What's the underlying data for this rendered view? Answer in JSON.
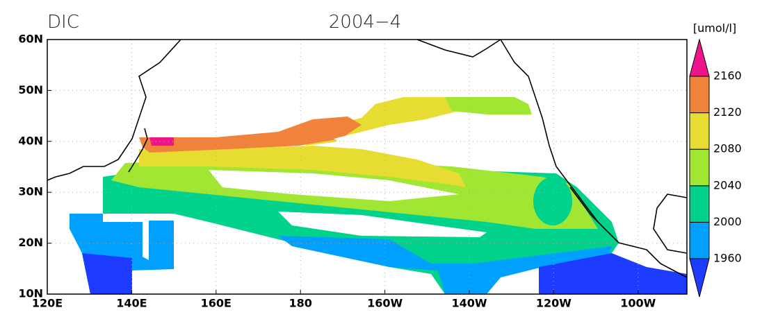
{
  "header": {
    "variable": "DIC",
    "date": "2004−4",
    "units": "[umol/l]"
  },
  "map": {
    "lat_ticks": [
      "10N",
      "20N",
      "30N",
      "40N",
      "50N",
      "60N"
    ],
    "lon_ticks": [
      "120E",
      "140E",
      "160E",
      "180",
      "160W",
      "140W",
      "120W",
      "100W"
    ]
  },
  "colorbar": {
    "levels": [
      1960,
      2000,
      2040,
      2080,
      2120,
      2160
    ],
    "colors": [
      "#1e3cff",
      "#00a0ff",
      "#00d28c",
      "#a0e632",
      "#e6dc32",
      "#f0823c",
      "#f0148c"
    ]
  }
}
